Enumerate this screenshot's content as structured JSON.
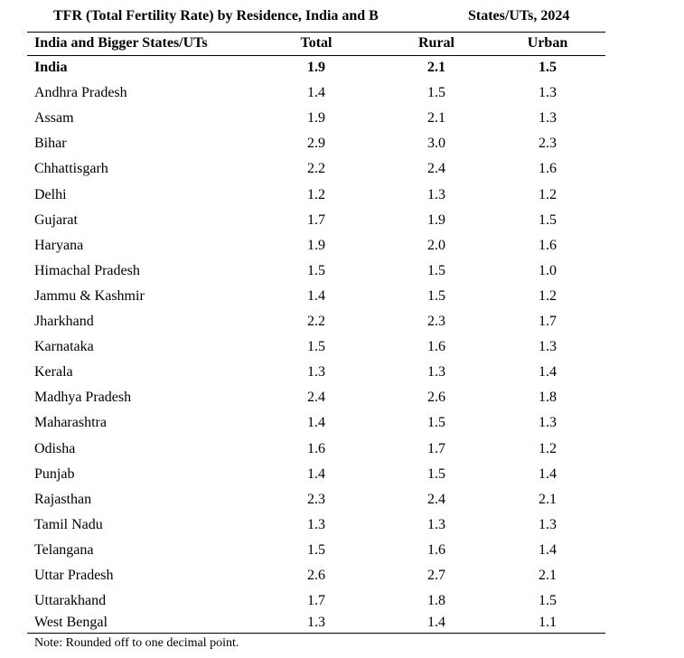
{
  "title": {
    "part1": "TFR (Total Fertility Rate) by Residence, India and B",
    "part2": "States/UTs, 2024"
  },
  "table": {
    "columns": [
      "India and Bigger States/UTs",
      "Total",
      "Rural",
      "Urban"
    ],
    "rows": [
      {
        "state": "India",
        "total": "1.9",
        "rural": "2.1",
        "urban": "1.5"
      },
      {
        "state": "Andhra Pradesh",
        "total": "1.4",
        "rural": "1.5",
        "urban": "1.3"
      },
      {
        "state": "Assam",
        "total": "1.9",
        "rural": "2.1",
        "urban": "1.3"
      },
      {
        "state": "Bihar",
        "total": "2.9",
        "rural": "3.0",
        "urban": "2.3"
      },
      {
        "state": "Chhattisgarh",
        "total": "2.2",
        "rural": "2.4",
        "urban": "1.6"
      },
      {
        "state": "Delhi",
        "total": "1.2",
        "rural": "1.3",
        "urban": "1.2"
      },
      {
        "state": "Gujarat",
        "total": "1.7",
        "rural": "1.9",
        "urban": "1.5"
      },
      {
        "state": "Haryana",
        "total": "1.9",
        "rural": "2.0",
        "urban": "1.6"
      },
      {
        "state": "Himachal Pradesh",
        "total": "1.5",
        "rural": "1.5",
        "urban": "1.0"
      },
      {
        "state": "Jammu & Kashmir",
        "total": "1.4",
        "rural": "1.5",
        "urban": "1.2"
      },
      {
        "state": "Jharkhand",
        "total": "2.2",
        "rural": "2.3",
        "urban": "1.7"
      },
      {
        "state": "Karnataka",
        "total": "1.5",
        "rural": "1.6",
        "urban": "1.3"
      },
      {
        "state": "Kerala",
        "total": "1.3",
        "rural": "1.3",
        "urban": "1.4"
      },
      {
        "state": "Madhya Pradesh",
        "total": "2.4",
        "rural": "2.6",
        "urban": "1.8"
      },
      {
        "state": "Maharashtra",
        "total": "1.4",
        "rural": "1.5",
        "urban": "1.3"
      },
      {
        "state": "Odisha",
        "total": "1.6",
        "rural": "1.7",
        "urban": "1.2"
      },
      {
        "state": "Punjab",
        "total": "1.4",
        "rural": "1.5",
        "urban": "1.4"
      },
      {
        "state": "Rajasthan",
        "total": "2.3",
        "rural": "2.4",
        "urban": "2.1"
      },
      {
        "state": "Tamil Nadu",
        "total": "1.3",
        "rural": "1.3",
        "urban": "1.3"
      },
      {
        "state": "Telangana",
        "total": "1.5",
        "rural": "1.6",
        "urban": "1.4"
      },
      {
        "state": "Uttar Pradesh",
        "total": "2.6",
        "rural": "2.7",
        "urban": "2.1"
      },
      {
        "state": "Uttarakhand",
        "total": "1.7",
        "rural": "1.8",
        "urban": "1.5"
      },
      {
        "state": "West Bengal",
        "total": "1.3",
        "rural": "1.4",
        "urban": "1.1"
      }
    ]
  },
  "note": "Note: Rounded off to one decimal point."
}
